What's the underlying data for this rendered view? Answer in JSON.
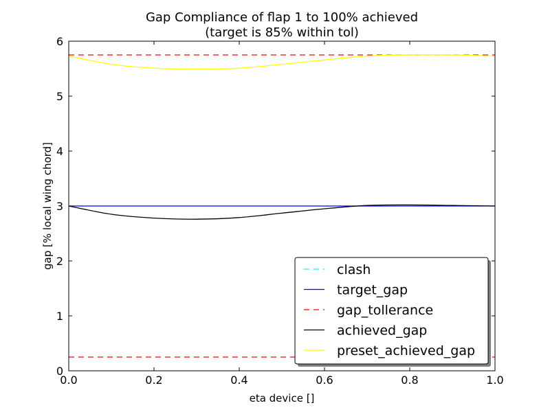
{
  "chart_data": {
    "type": "line",
    "title_line1": "Gap Compliance of flap 1 to 100% achieved",
    "title_line2": "(target is 85% within tol)",
    "xlabel": "eta device []",
    "ylabel": "gap [% local wing chord]",
    "xlim": [
      0.0,
      1.0
    ],
    "ylim": [
      0,
      6
    ],
    "xticks": [
      "0.0",
      "0.2",
      "0.4",
      "0.6",
      "0.8",
      "1.0"
    ],
    "yticks": [
      "0",
      "1",
      "2",
      "3",
      "4",
      "5",
      "6"
    ],
    "legend_position": "lower-right",
    "series": [
      {
        "name": "clash",
        "color": "#00ffff",
        "dash": true,
        "x": [],
        "y": []
      },
      {
        "name": "target_gap",
        "color": "#0000ff",
        "dash": false,
        "x": [
          0.0,
          1.0
        ],
        "y": [
          3.0,
          3.0
        ]
      },
      {
        "name": "gap_tollerance",
        "color": "#ff0000",
        "dash": true,
        "x": [
          0.0,
          1.0
        ],
        "y": [
          5.75,
          5.75
        ],
        "x2": [
          0.0,
          1.0
        ],
        "y2": [
          0.25,
          0.25
        ]
      },
      {
        "name": "achieved_gap",
        "color": "#000000",
        "dash": false,
        "x": [
          0.0,
          0.1,
          0.2,
          0.3,
          0.4,
          0.5,
          0.6,
          0.7,
          0.8,
          0.9,
          1.0
        ],
        "y": [
          3.0,
          2.85,
          2.78,
          2.76,
          2.79,
          2.87,
          2.95,
          3.01,
          3.02,
          3.01,
          3.0
        ]
      },
      {
        "name": "preset_achieved_gap",
        "color": "#ffff00",
        "dash": false,
        "x": [
          0.0,
          0.1,
          0.2,
          0.3,
          0.4,
          0.5,
          0.6,
          0.7,
          0.8,
          0.9,
          1.0
        ],
        "y": [
          5.73,
          5.58,
          5.51,
          5.49,
          5.51,
          5.58,
          5.66,
          5.73,
          5.75,
          5.75,
          5.73
        ]
      }
    ]
  }
}
